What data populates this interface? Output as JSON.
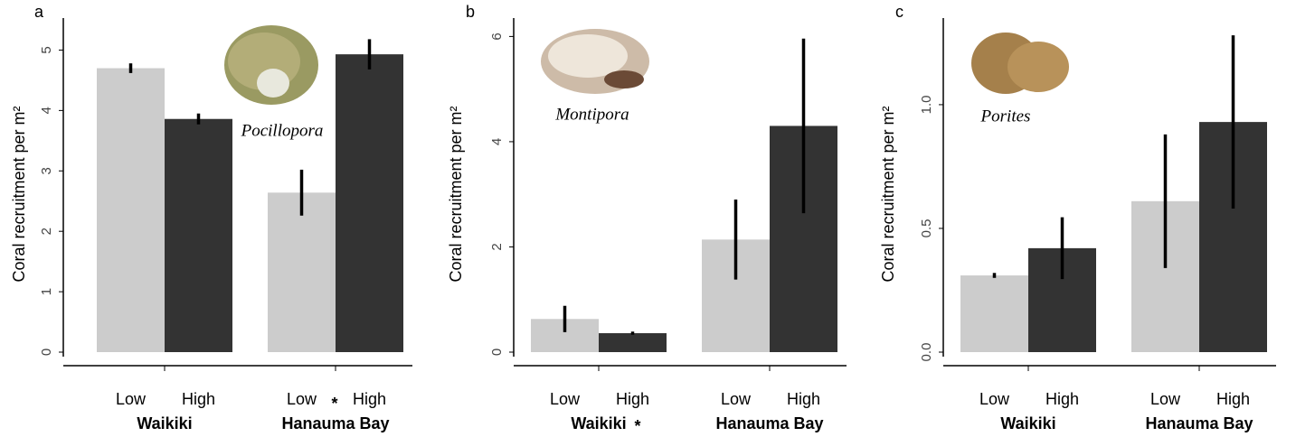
{
  "chart_data": [
    {
      "type": "bar",
      "panel": "a",
      "species": "Pocillopora",
      "ylabel": "Coral recruitment per m²",
      "groups": [
        "Waikiki",
        "Hanauma Bay"
      ],
      "categories": [
        "Low",
        "High",
        "Low",
        "High"
      ],
      "values": [
        4.7,
        3.86,
        2.64,
        4.93
      ],
      "errors": [
        0.08,
        0.09,
        0.38,
        0.25
      ],
      "colors": [
        "#cccccc",
        "#333333",
        "#cccccc",
        "#333333"
      ],
      "ylim": [
        0,
        5.53
      ],
      "yticks": [
        0,
        1,
        2,
        3,
        4,
        5
      ],
      "annotation": "*"
    },
    {
      "type": "bar",
      "panel": "b",
      "species": "Montipora",
      "ylabel": "Coral recruitment per m²",
      "groups": [
        "Waikiki",
        "Hanauma Bay"
      ],
      "categories": [
        "Low",
        "High",
        "Low",
        "High"
      ],
      "values": [
        0.63,
        0.36,
        2.14,
        4.3
      ],
      "errors": [
        0.25,
        0.03,
        0.76,
        1.66
      ],
      "colors": [
        "#cccccc",
        "#333333",
        "#cccccc",
        "#333333"
      ],
      "ylim": [
        0,
        6.35
      ],
      "yticks": [
        0,
        2,
        4,
        6
      ],
      "annotation": "*"
    },
    {
      "type": "bar",
      "panel": "c",
      "species": "Porites",
      "ylabel": "Coral recruitment per m²",
      "groups": [
        "Waikiki",
        "Hanauma Bay"
      ],
      "categories": [
        "Low",
        "High",
        "Low",
        "High"
      ],
      "values": [
        0.31,
        0.42,
        0.61,
        0.93
      ],
      "errors": [
        0.01,
        0.125,
        0.27,
        0.35
      ],
      "colors": [
        "#cccccc",
        "#333333",
        "#cccccc",
        "#333333"
      ],
      "ylim": [
        0,
        1.35
      ],
      "yticks": [
        {
          "value": 0,
          "label": "0.0"
        },
        0.5,
        {
          "value": 1,
          "label": "1.0"
        }
      ]
    }
  ]
}
